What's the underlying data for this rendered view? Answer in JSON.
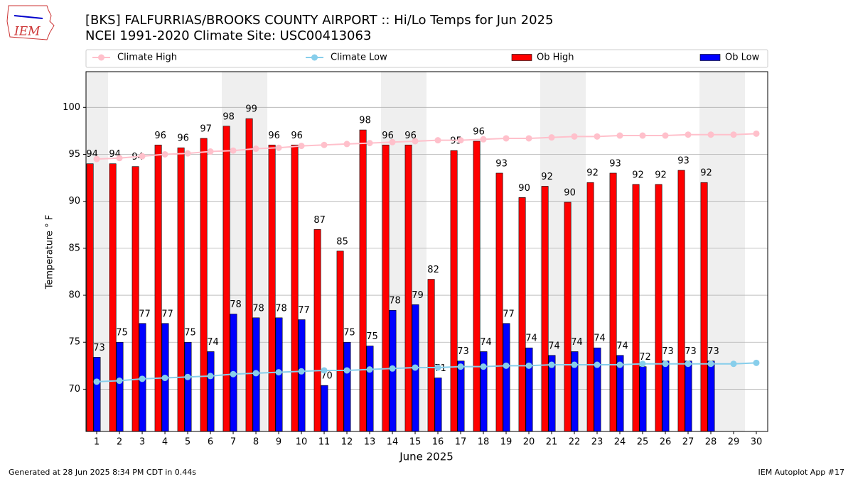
{
  "logo": "IEM",
  "footer_left": "Generated at 28 Jun 2025 8:34 PM CDT in 0.44s",
  "footer_right": "IEM Autoplot App #17",
  "chart_data": {
    "type": "bar",
    "title": "[BKS] FALFURRIAS/BROOKS COUNTY AIRPORT :: Hi/Lo Temps for Jun 2025",
    "subtitle": "NCEI 1991-2020 Climate Site: USC00413063",
    "x_label": "June 2025",
    "y_label": "Temperature ° F",
    "x": [
      1,
      2,
      3,
      4,
      5,
      6,
      7,
      8,
      9,
      10,
      11,
      12,
      13,
      14,
      15,
      16,
      17,
      18,
      19,
      20,
      21,
      22,
      23,
      24,
      25,
      26,
      27,
      28,
      29,
      30
    ],
    "xlim": [
      0.53,
      30.5
    ],
    "xticks": [
      1,
      2,
      3,
      4,
      5,
      6,
      7,
      8,
      9,
      10,
      11,
      12,
      13,
      14,
      15,
      16,
      17,
      18,
      19,
      20,
      21,
      22,
      23,
      24,
      25,
      26,
      27,
      28,
      29,
      30
    ],
    "ylim": [
      65.5,
      103.8
    ],
    "yticks": [
      70,
      75,
      80,
      85,
      90,
      95,
      100
    ],
    "grid": true,
    "series": [
      {
        "name": "Climate High",
        "kind": "line",
        "color": "#ffc0cb",
        "values": [
          94.5,
          94.6,
          94.8,
          95.0,
          95.1,
          95.3,
          95.4,
          95.6,
          95.7,
          95.9,
          96.0,
          96.1,
          96.2,
          96.3,
          96.4,
          96.5,
          96.5,
          96.6,
          96.7,
          96.7,
          96.8,
          96.9,
          96.9,
          97.0,
          97.0,
          97.0,
          97.1,
          97.1,
          97.1,
          97.2
        ]
      },
      {
        "name": "Climate Low",
        "kind": "line",
        "color": "#87ceeb",
        "values": [
          70.8,
          70.9,
          71.1,
          71.2,
          71.3,
          71.4,
          71.6,
          71.7,
          71.8,
          71.9,
          72.0,
          72.0,
          72.1,
          72.2,
          72.3,
          72.3,
          72.4,
          72.4,
          72.5,
          72.5,
          72.6,
          72.6,
          72.6,
          72.6,
          72.7,
          72.7,
          72.7,
          72.7,
          72.7,
          72.8
        ]
      },
      {
        "name": "Ob High",
        "kind": "bar",
        "color": "#ff0000",
        "values": [
          94.0,
          94.0,
          93.7,
          96.0,
          95.7,
          96.7,
          98.0,
          98.8,
          96.0,
          96.0,
          87.0,
          84.7,
          97.6,
          96.0,
          96.0,
          81.7,
          95.4,
          96.4,
          93.0,
          90.4,
          91.6,
          89.9,
          92.0,
          93.0,
          91.8,
          91.8,
          93.3,
          92.0,
          null,
          null
        ],
        "value_labels": [
          94,
          94,
          94,
          96,
          96,
          97,
          98,
          99,
          96,
          96,
          87,
          85,
          98,
          96,
          96,
          82,
          95,
          96,
          93,
          90,
          92,
          90,
          92,
          93,
          92,
          92,
          93,
          92,
          null,
          null
        ]
      },
      {
        "name": "Ob Low",
        "kind": "bar",
        "color": "#0000ff",
        "values": [
          73.4,
          75.0,
          77.0,
          77.0,
          75.0,
          74.0,
          78.0,
          77.6,
          77.6,
          77.4,
          70.4,
          75.0,
          74.6,
          78.4,
          79.0,
          71.2,
          73.0,
          74.0,
          77.0,
          74.4,
          73.6,
          74.0,
          74.4,
          73.6,
          72.4,
          73.0,
          73.0,
          73.0,
          null,
          null
        ],
        "value_labels": [
          73,
          75,
          77,
          77,
          75,
          74,
          78,
          78,
          78,
          77,
          70,
          75,
          75,
          78,
          79,
          71,
          73,
          74,
          77,
          74,
          74,
          74,
          74,
          74,
          72,
          73,
          73,
          73,
          null,
          null
        ]
      }
    ]
  }
}
